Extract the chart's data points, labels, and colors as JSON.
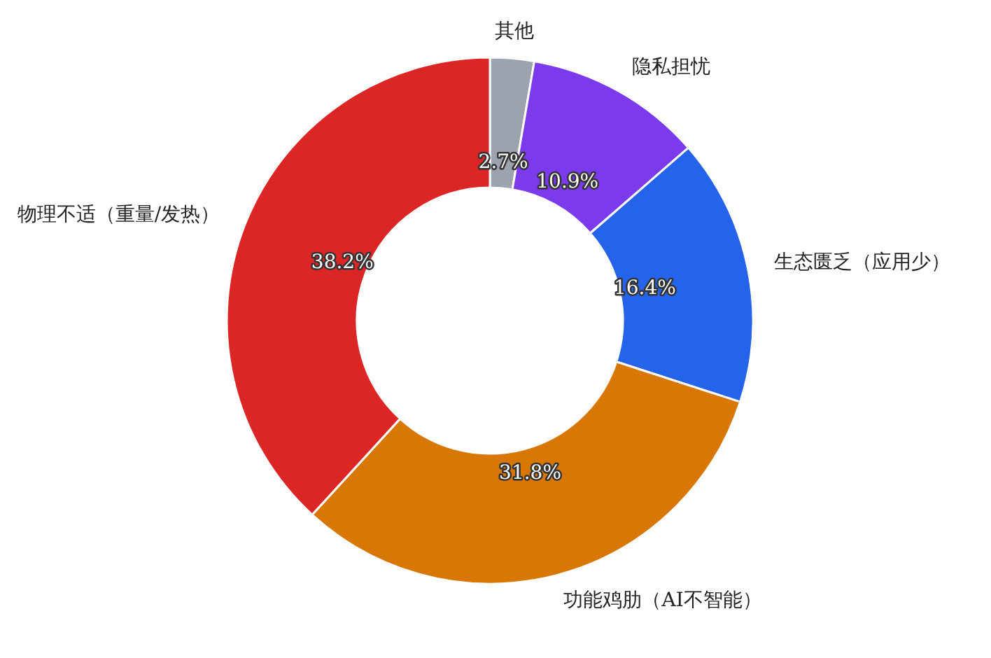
{
  "chart_data": {
    "type": "donut",
    "categories": [
      "其他",
      "隐私担忧",
      "生态匮乏（应用少）",
      "功能鸡肋（AI不智能）",
      "物理不适（重量/发热）"
    ],
    "values": [
      2.7,
      10.9,
      16.4,
      31.8,
      38.2
    ],
    "value_labels": [
      "2.7%",
      "10.9%",
      "16.4%",
      "31.8%",
      "38.2%"
    ],
    "colors": [
      "#9ca3af",
      "#7c3aed",
      "#2563eb",
      "#d97706",
      "#dc2626"
    ]
  }
}
